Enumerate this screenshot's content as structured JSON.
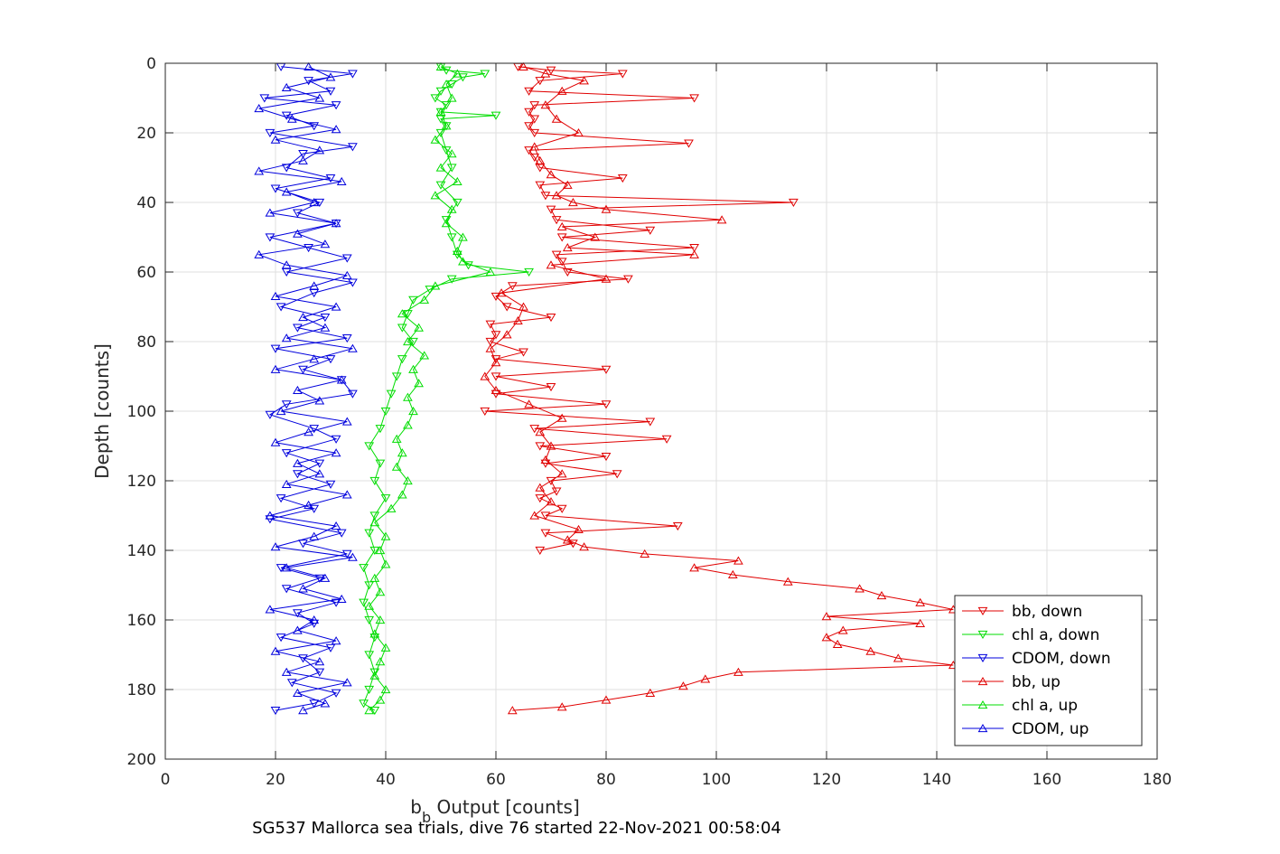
{
  "chart_data": {
    "type": "line",
    "title": "",
    "caption": "SG537 Mallorca sea trials, dive 76 started 22-Nov-2021 00:58:04",
    "xlabel_main": "b",
    "xlabel_sub": "b",
    "xlabel_rest": " Output [counts]",
    "ylabel": "Depth [counts]",
    "xlim": [
      0,
      180
    ],
    "ylim": [
      0,
      200
    ],
    "y_reversed": true,
    "grid": true,
    "legend_position": "bottom-right",
    "x_ticks": [
      0,
      20,
      40,
      60,
      80,
      100,
      120,
      140,
      160,
      180
    ],
    "y_ticks": [
      0,
      20,
      40,
      60,
      80,
      100,
      120,
      140,
      160,
      180,
      200
    ],
    "x_tick_labels": [
      "0",
      "20",
      "40",
      "60",
      "80",
      "100",
      "120",
      "140",
      "160",
      "180"
    ],
    "y_tick_labels": [
      "0",
      "20",
      "40",
      "60",
      "80",
      "100",
      "120",
      "140",
      "160",
      "180",
      "200"
    ],
    "series": [
      {
        "name": "bb, down",
        "color": "#e00000",
        "marker": "triangle-down",
        "depth": [
          1,
          2,
          3,
          5,
          8,
          10,
          12,
          14,
          16,
          18,
          20,
          23,
          25,
          27,
          30,
          33,
          35,
          38,
          40,
          42,
          45,
          48,
          50,
          53,
          55,
          57,
          60,
          62,
          64,
          67,
          70,
          73,
          75,
          78,
          80,
          83,
          85,
          88,
          90,
          93,
          95,
          98,
          100,
          103,
          105,
          108,
          110,
          113,
          115,
          118,
          120,
          123,
          125,
          128,
          130,
          133,
          135,
          138,
          140
        ],
        "x": [
          64,
          70,
          83,
          68,
          66,
          96,
          67,
          66,
          67,
          66,
          67,
          95,
          66,
          67,
          68,
          83,
          68,
          69,
          114,
          70,
          71,
          88,
          72,
          96,
          71,
          72,
          73,
          84,
          63,
          60,
          62,
          70,
          59,
          60,
          59,
          65,
          60,
          80,
          60,
          70,
          60,
          80,
          58,
          88,
          67,
          91,
          68,
          80,
          69,
          82,
          70,
          71,
          68,
          72,
          69,
          93,
          69,
          74,
          68
        ]
      },
      {
        "name": "chl a, down",
        "color": "#00dd00",
        "marker": "triangle-down",
        "depth": [
          1,
          2,
          3,
          4,
          6,
          8,
          10,
          12,
          14,
          15,
          16,
          18,
          20,
          25,
          30,
          35,
          40,
          45,
          50,
          55,
          58,
          60,
          62,
          65,
          68,
          72,
          76,
          80,
          85,
          90,
          95,
          100,
          105,
          110,
          115,
          120,
          125,
          130,
          135,
          140,
          145,
          150,
          155,
          160,
          165,
          170,
          175,
          180,
          184,
          186
        ],
        "x": [
          50,
          51,
          58,
          54,
          52,
          50,
          49,
          51,
          50,
          60,
          50,
          51,
          50,
          51,
          52,
          50,
          53,
          51,
          52,
          53,
          55,
          66,
          52,
          48,
          45,
          44,
          43,
          45,
          43,
          42,
          41,
          40,
          39,
          37,
          39,
          38,
          40,
          38,
          37,
          38,
          36,
          37,
          36,
          37,
          38,
          37,
          38,
          37,
          36,
          38
        ]
      },
      {
        "name": "CDOM, down",
        "color": "#0000dd",
        "marker": "triangle-down",
        "depth": [
          1,
          3,
          5,
          8,
          10,
          12,
          15,
          18,
          20,
          24,
          26,
          30,
          33,
          36,
          40,
          43,
          46,
          50,
          53,
          56,
          60,
          63,
          66,
          70,
          73,
          76,
          79,
          82,
          85,
          88,
          91,
          95,
          98,
          101,
          105,
          108,
          112,
          115,
          118,
          121,
          125,
          128,
          131,
          135,
          138,
          141,
          145,
          148,
          151,
          155,
          158,
          161,
          165,
          168,
          171,
          175,
          178,
          181,
          184,
          186
        ],
        "x": [
          21,
          34,
          26,
          30,
          18,
          31,
          22,
          27,
          19,
          34,
          25,
          22,
          30,
          20,
          28,
          24,
          31,
          19,
          26,
          33,
          22,
          34,
          27,
          21,
          29,
          24,
          33,
          20,
          30,
          25,
          32,
          34,
          22,
          19,
          27,
          31,
          22,
          28,
          24,
          30,
          21,
          27,
          19,
          32,
          25,
          33,
          21,
          28,
          22,
          31,
          24,
          27,
          21,
          30,
          25,
          28,
          23,
          31,
          27,
          20
        ]
      },
      {
        "name": "bb, up",
        "color": "#e00000",
        "marker": "triangle-up",
        "depth": [
          186,
          185,
          183,
          181,
          179,
          177,
          175,
          173,
          171,
          169,
          167,
          165,
          163,
          161,
          159,
          157,
          155,
          153,
          151,
          149,
          147,
          145,
          143,
          141,
          139,
          137,
          134,
          130,
          126,
          122,
          118,
          114,
          110,
          106,
          102,
          98,
          94,
          90,
          86,
          82,
          78,
          74,
          70,
          66,
          62,
          58,
          55,
          53,
          50,
          47,
          45,
          42,
          40,
          38,
          35,
          32,
          28,
          24,
          20,
          16,
          12,
          8,
          5,
          3,
          1
        ],
        "x": [
          63,
          72,
          80,
          88,
          94,
          98,
          104,
          143,
          133,
          128,
          122,
          120,
          123,
          137,
          120,
          143,
          137,
          130,
          126,
          113,
          103,
          96,
          104,
          87,
          76,
          73,
          75,
          67,
          70,
          68,
          72,
          69,
          70,
          68,
          72,
          66,
          60,
          58,
          60,
          59,
          62,
          64,
          65,
          61,
          80,
          70,
          96,
          73,
          78,
          72,
          101,
          80,
          74,
          71,
          73,
          70,
          68,
          67,
          75,
          71,
          69,
          72,
          76,
          69,
          65
        ]
      },
      {
        "name": "chl a, up",
        "color": "#00dd00",
        "marker": "triangle-up",
        "depth": [
          186,
          183,
          180,
          176,
          172,
          168,
          164,
          160,
          156,
          152,
          148,
          144,
          140,
          136,
          132,
          128,
          124,
          120,
          116,
          112,
          108,
          104,
          100,
          96,
          92,
          88,
          84,
          80,
          76,
          72,
          68,
          64,
          60,
          57,
          54,
          50,
          46,
          42,
          38,
          34,
          30,
          26,
          22,
          18,
          14,
          10,
          6,
          3,
          1
        ],
        "x": [
          37,
          39,
          40,
          38,
          39,
          40,
          38,
          39,
          37,
          39,
          38,
          40,
          39,
          40,
          38,
          41,
          43,
          44,
          42,
          43,
          42,
          44,
          45,
          44,
          46,
          45,
          47,
          44,
          46,
          43,
          47,
          49,
          59,
          54,
          53,
          54,
          51,
          52,
          49,
          53,
          50,
          52,
          49,
          51,
          50,
          52,
          51,
          53,
          50
        ]
      },
      {
        "name": "CDOM, up",
        "color": "#0000dd",
        "marker": "triangle-up",
        "depth": [
          186,
          184,
          181,
          178,
          175,
          172,
          169,
          166,
          163,
          160,
          157,
          154,
          151,
          148,
          145,
          142,
          139,
          136,
          133,
          130,
          127,
          124,
          121,
          118,
          115,
          112,
          109,
          106,
          103,
          100,
          97,
          94,
          91,
          88,
          85,
          82,
          79,
          76,
          73,
          70,
          67,
          64,
          61,
          58,
          55,
          52,
          49,
          46,
          43,
          40,
          37,
          34,
          31,
          28,
          25,
          22,
          19,
          16,
          13,
          10,
          7,
          4,
          1
        ],
        "x": [
          25,
          29,
          24,
          33,
          22,
          28,
          20,
          31,
          24,
          27,
          19,
          32,
          25,
          29,
          22,
          34,
          20,
          27,
          31,
          19,
          26,
          33,
          22,
          28,
          24,
          31,
          20,
          26,
          33,
          21,
          28,
          24,
          32,
          20,
          27,
          34,
          22,
          29,
          25,
          31,
          20,
          27,
          33,
          22,
          17,
          29,
          24,
          31,
          19,
          27,
          22,
          32,
          17,
          25,
          28,
          20,
          31,
          23,
          17,
          28,
          22,
          30,
          26
        ]
      }
    ]
  }
}
